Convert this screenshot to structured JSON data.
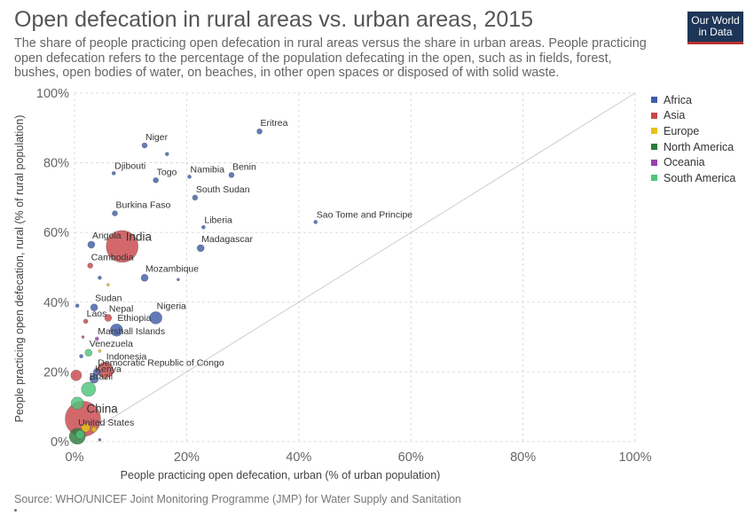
{
  "header": {
    "title": "Open defecation in rural areas vs. urban areas, 2015",
    "subtitle": "The share of people practicing open defecation in rural areas versus the share in urban areas. People practicing open defecation refers to the percentage of the population defecating in the open, such as in fields, forest, bushes, open bodies of water, on beaches, in other open spaces or disposed of with solid waste.",
    "logo_line1": "Our World",
    "logo_line2": "in Data"
  },
  "footer": {
    "source": "Source: WHO/UNICEF Joint Monitoring Programme (JMP) for Water Supply and Sanitation"
  },
  "legend": [
    {
      "label": "Africa",
      "color": "#3f5ea8"
    },
    {
      "label": "Asia",
      "color": "#c9474a"
    },
    {
      "label": "Europe",
      "color": "#e5c21c"
    },
    {
      "label": "North America",
      "color": "#2e7a3d"
    },
    {
      "label": "Oceania",
      "color": "#9a3fb3"
    },
    {
      "label": "South America",
      "color": "#4ec57a"
    }
  ],
  "chart_data": {
    "type": "scatter",
    "title": "Open defecation in rural areas vs. urban areas, 2015",
    "xlabel": "People practicing open defecation, urban (% of urban population)",
    "ylabel": "People practicing open defecation, rural (% of rural population)",
    "xlim": [
      0,
      100
    ],
    "ylim": [
      0,
      100
    ],
    "x_ticks": [
      "0%",
      "20%",
      "40%",
      "60%",
      "80%",
      "100%"
    ],
    "y_ticks": [
      "0%",
      "20%",
      "40%",
      "60%",
      "80%",
      "100%"
    ],
    "grid": true,
    "legend_position": "right",
    "reference_line": "y = x",
    "points": [
      {
        "label": "Eritrea",
        "x": 33,
        "y": 89,
        "region": "Africa",
        "size": 3
      },
      {
        "label": "Niger",
        "x": 12.5,
        "y": 85,
        "region": "Africa",
        "size": 3
      },
      {
        "label": "",
        "x": 16.5,
        "y": 82.5,
        "region": "Africa",
        "size": 2
      },
      {
        "label": "Djibouti",
        "x": 7,
        "y": 77,
        "region": "Africa",
        "size": 2
      },
      {
        "label": "Namibia",
        "x": 20.5,
        "y": 76,
        "region": "Africa",
        "size": 2
      },
      {
        "label": "Benin",
        "x": 28,
        "y": 76.5,
        "region": "Africa",
        "size": 3
      },
      {
        "label": "Togo",
        "x": 14.5,
        "y": 75,
        "region": "Africa",
        "size": 3
      },
      {
        "label": "South Sudan",
        "x": 21.5,
        "y": 70,
        "region": "Africa",
        "size": 3
      },
      {
        "label": "Burkina Faso",
        "x": 7.2,
        "y": 65.5,
        "region": "Africa",
        "size": 3
      },
      {
        "label": "Liberia",
        "x": 23,
        "y": 61.5,
        "region": "Africa",
        "size": 2
      },
      {
        "label": "Sao Tome and Principe",
        "x": 43,
        "y": 63,
        "region": "Africa",
        "size": 2
      },
      {
        "label": "India",
        "x": 8.5,
        "y": 56,
        "region": "Asia",
        "size": 18
      },
      {
        "label": "Angola",
        "x": 3,
        "y": 56.5,
        "region": "Africa",
        "size": 4
      },
      {
        "label": "Madagascar",
        "x": 22.5,
        "y": 55.5,
        "region": "Africa",
        "size": 4
      },
      {
        "label": "Cambodia",
        "x": 2.8,
        "y": 50.5,
        "region": "Asia",
        "size": 3
      },
      {
        "label": "Mozambique",
        "x": 12.5,
        "y": 47,
        "region": "Africa",
        "size": 4
      },
      {
        "label": "",
        "x": 4.5,
        "y": 47,
        "region": "Africa",
        "size": 2
      },
      {
        "label": "",
        "x": 18.5,
        "y": 46.5,
        "region": "Africa",
        "size": 1.5
      },
      {
        "label": "",
        "x": 6,
        "y": 45,
        "region": "Europe",
        "size": 1.5
      },
      {
        "label": "Sudan",
        "x": 3.5,
        "y": 38.5,
        "region": "Africa",
        "size": 4
      },
      {
        "label": "",
        "x": 0.5,
        "y": 39,
        "region": "Africa",
        "size": 2
      },
      {
        "label": "Nigeria",
        "x": 14.5,
        "y": 35.5,
        "region": "Africa",
        "size": 7
      },
      {
        "label": "Nepal",
        "x": 6,
        "y": 35.5,
        "region": "Asia",
        "size": 4
      },
      {
        "label": "Laos",
        "x": 2,
        "y": 34.5,
        "region": "Asia",
        "size": 2.5
      },
      {
        "label": "Ethiopia",
        "x": 7.5,
        "y": 32,
        "region": "Africa",
        "size": 7
      },
      {
        "label": "Marshall Islands",
        "x": 4,
        "y": 29.5,
        "region": "Oceania",
        "size": 2
      },
      {
        "label": "",
        "x": 1.5,
        "y": 30,
        "region": "Asia",
        "size": 1.5
      },
      {
        "label": "Venezuela",
        "x": 2.5,
        "y": 25.5,
        "region": "South America",
        "size": 4
      },
      {
        "label": "",
        "x": 4.5,
        "y": 26,
        "region": "Europe",
        "size": 1.5
      },
      {
        "label": "",
        "x": 1.2,
        "y": 24.5,
        "region": "Africa",
        "size": 2
      },
      {
        "label": "Indonesia",
        "x": 5.5,
        "y": 20.5,
        "region": "Asia",
        "size": 9
      },
      {
        "label": "Democratic Republic of Congo",
        "x": 4,
        "y": 20,
        "region": "Africa",
        "size": 4
      },
      {
        "label": "",
        "x": 0.3,
        "y": 19,
        "region": "Asia",
        "size": 6
      },
      {
        "label": "Kenya",
        "x": 3.5,
        "y": 18,
        "region": "Africa",
        "size": 5
      },
      {
        "label": "Brazil",
        "x": 2.5,
        "y": 15,
        "region": "South America",
        "size": 8
      },
      {
        "label": "",
        "x": 0.5,
        "y": 11,
        "region": "South America",
        "size": 7
      },
      {
        "label": "China",
        "x": 1.5,
        "y": 6.5,
        "region": "Asia",
        "size": 20
      },
      {
        "label": "United States",
        "x": 0.5,
        "y": 1.5,
        "region": "North America",
        "size": 9
      },
      {
        "label": "",
        "x": 2,
        "y": 4,
        "region": "Europe",
        "size": 5
      },
      {
        "label": "",
        "x": 1,
        "y": 2,
        "region": "South America",
        "size": 5
      },
      {
        "label": "",
        "x": 3.5,
        "y": 3.5,
        "region": "Europe",
        "size": 3
      },
      {
        "label": "",
        "x": 4.5,
        "y": 0.5,
        "region": "Africa",
        "size": 1.5
      }
    ]
  }
}
